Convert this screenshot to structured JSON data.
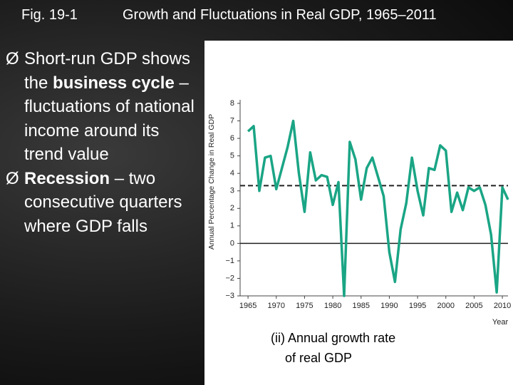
{
  "slide": {
    "fig_label": "Fig. 19-1",
    "title": "Growth and Fluctuations in Real GDP, 1965–2011",
    "bullet": "Ø",
    "bullets": [
      {
        "parts": [
          {
            "text": "Short-run GDP shows the ",
            "bold": false
          },
          {
            "text": "business cycle",
            "bold": true
          },
          {
            "text": " – fluctuations of national income around its trend value",
            "bold": false
          }
        ]
      },
      {
        "parts": [
          {
            "text": "Recession",
            "bold": true
          },
          {
            "text": " – two consecutive quarters where GDP falls",
            "bold": false
          }
        ]
      }
    ]
  },
  "chart_data": {
    "type": "line",
    "y_label": "Annual Percentage Change in Real GDP",
    "x_label": "Year",
    "caption": [
      "(ii)        Annual growth rate",
      "of real GDP"
    ],
    "x": [
      1965,
      1966,
      1967,
      1968,
      1969,
      1970,
      1971,
      1972,
      1973,
      1974,
      1975,
      1976,
      1977,
      1978,
      1979,
      1980,
      1981,
      1982,
      1983,
      1984,
      1985,
      1986,
      1987,
      1988,
      1989,
      1990,
      1991,
      1992,
      1993,
      1994,
      1995,
      1996,
      1997,
      1998,
      1999,
      2000,
      2001,
      2002,
      2003,
      2004,
      2005,
      2006,
      2007,
      2008,
      2009,
      2010,
      2011
    ],
    "series": [
      {
        "color": "#1aa585",
        "values": [
          6.4,
          6.7,
          3.0,
          4.9,
          5.0,
          3.1,
          4.3,
          5.5,
          7.0,
          4.0,
          1.8,
          5.2,
          3.6,
          3.9,
          3.8,
          2.2,
          3.5,
          -3.0,
          5.8,
          4.8,
          2.5,
          4.3,
          4.9,
          3.8,
          2.7,
          -0.5,
          -2.2,
          0.8,
          2.3,
          4.9,
          3.0,
          1.6,
          4.3,
          4.2,
          5.6,
          5.3,
          1.8,
          2.9,
          1.9,
          3.2,
          3.0,
          3.2,
          2.2,
          0.5,
          -2.8,
          3.2,
          2.5
        ]
      }
    ],
    "trend_line": 3.3,
    "xlim": [
      1963.6,
      2011
    ],
    "ylim": [
      -3,
      8
    ],
    "xticks": [
      1965,
      1970,
      1975,
      1980,
      1985,
      1990,
      1995,
      2000,
      2005,
      2010
    ],
    "yticks": [
      {
        "value": -3,
        "label": "−3"
      },
      {
        "value": -2,
        "label": "−2"
      },
      {
        "value": -1,
        "label": "−1"
      },
      0,
      1,
      2,
      3,
      4,
      5,
      6,
      7,
      8
    ]
  }
}
